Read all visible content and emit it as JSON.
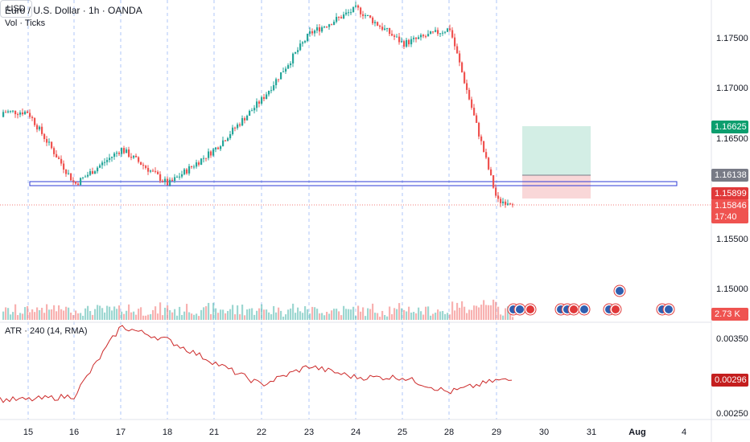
{
  "header": {
    "title": "Euro / U.S. Dollar · 1h · OANDA",
    "volume_indicator": "Vol · Ticks",
    "atr_indicator": "ATR · 240 (14, RMA)",
    "currency": "USD"
  },
  "price_axis": {
    "ticks": [
      "1.17500",
      "1.17000",
      "1.16500",
      "1.15500",
      "1.15000"
    ],
    "badges": {
      "take_profit": "1.16625",
      "entry": "1.16138",
      "stop": "1.15899",
      "last_price": "1.15846",
      "countdown": "17:40",
      "volume": "2.73 K"
    }
  },
  "atr_axis": {
    "ticks": [
      "0.00350",
      "0.00250"
    ],
    "badge": "0.00296"
  },
  "time_axis": {
    "labels": [
      "15",
      "16",
      "17",
      "18",
      "21",
      "22",
      "23",
      "24",
      "25",
      "28",
      "29",
      "30",
      "31",
      "Aug",
      "4"
    ]
  },
  "colors": {
    "up": "#26a69a",
    "down": "#ef5350",
    "atr_line": "#cc2828",
    "zone": "#2e3bd6",
    "tp": "#0c9e6e",
    "stop": "#e0393a",
    "entry": "#787b86",
    "grid_session": "#5b8def"
  },
  "chart_data": {
    "type": "candlestick",
    "title": "Euro / U.S. Dollar · 1h · OANDA",
    "price_ylim": [
      1.1535,
      1.1795
    ],
    "close_path": [
      {
        "x": "15",
        "y": 1.1675
      },
      {
        "x": "16",
        "y": 1.1605
      },
      {
        "x": "17",
        "y": 1.164
      },
      {
        "x": "18",
        "y": 1.1605
      },
      {
        "x": "21",
        "y": 1.164
      },
      {
        "x": "22",
        "y": 1.169
      },
      {
        "x": "23",
        "y": 1.1755
      },
      {
        "x": "24",
        "y": 1.178
      },
      {
        "x": "25",
        "y": 1.1745
      },
      {
        "x": "28",
        "y": 1.176
      },
      {
        "x": "29",
        "y": 1.1588
      }
    ],
    "atr_path": [
      {
        "x": "15",
        "y": 0.0027
      },
      {
        "x": "16",
        "y": 0.00275
      },
      {
        "x": "17",
        "y": 0.00368
      },
      {
        "x": "18",
        "y": 0.0035
      },
      {
        "x": "21",
        "y": 0.0032
      },
      {
        "x": "22",
        "y": 0.0029
      },
      {
        "x": "23",
        "y": 0.00315
      },
      {
        "x": "24",
        "y": 0.003
      },
      {
        "x": "25",
        "y": 0.003
      },
      {
        "x": "28",
        "y": 0.0028
      },
      {
        "x": "29",
        "y": 0.00296
      }
    ],
    "atr_ylim": [
      0.0024,
      0.0038
    ]
  }
}
